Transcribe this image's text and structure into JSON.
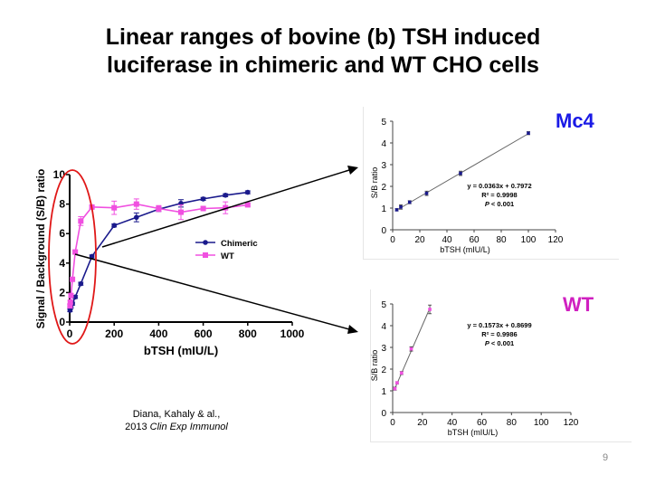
{
  "slide": {
    "title_line1": "Linear ranges of bovine (b) TSH induced",
    "title_line2": "luciferase in chimeric and WT CHO cells",
    "citation_authors": "Diana, Kahaly & al.,",
    "citation_year": "2013",
    "citation_journal": "Clin Exp Immunol",
    "page_number": "9"
  },
  "colors": {
    "chimeric": "#1a1a8c",
    "wt": "#f050e0",
    "mc4_label": "#1a1ae6",
    "wt_label": "#d020c0",
    "ellipse": "#e01818"
  },
  "chart_data": [
    {
      "type": "line",
      "title": "",
      "xlabel": "bTSH (mIU/L)",
      "ylabel": "Signal / Background (S/B) ratio",
      "xlim": [
        0,
        1000
      ],
      "ylim": [
        0,
        10
      ],
      "xticks": [
        "0",
        "200",
        "400",
        "600",
        "800",
        "1000"
      ],
      "yticks": [
        "0",
        "2",
        "4",
        "6",
        "8",
        "10"
      ],
      "legend_position": "center-right",
      "series": [
        {
          "name": "Chimeric",
          "marker": "circle",
          "x": [
            1.5,
            3,
            6,
            12.5,
            25,
            50,
            100,
            200,
            300,
            400,
            500,
            600,
            700,
            800
          ],
          "y": [
            0.8,
            0.95,
            1.05,
            1.25,
            1.7,
            2.6,
            4.45,
            6.55,
            7.1,
            7.65,
            8.05,
            8.35,
            8.6,
            8.8
          ],
          "err": [
            0.1,
            0.1,
            0.1,
            0.1,
            0.1,
            0.1,
            0.1,
            0.1,
            0.3,
            0.15,
            0.25,
            0.1,
            0.1,
            0.1
          ]
        },
        {
          "name": "WT",
          "marker": "square",
          "x": [
            1.5,
            3,
            6,
            12.5,
            25,
            50,
            100,
            200,
            300,
            400,
            500,
            600,
            700,
            800
          ],
          "y": [
            1.1,
            1.35,
            1.8,
            2.9,
            4.75,
            6.85,
            7.8,
            7.75,
            8.0,
            7.7,
            7.45,
            7.7,
            7.75,
            7.95
          ],
          "err": [
            0.1,
            0.1,
            0.1,
            0.1,
            0.1,
            0.3,
            0.1,
            0.45,
            0.35,
            0.2,
            0.5,
            0.1,
            0.4,
            0.1
          ]
        }
      ]
    },
    {
      "type": "scatter",
      "label": "Mc4",
      "xlabel": "bTSH (mIU/L)",
      "ylabel": "S/B ratio",
      "xlim": [
        0,
        120
      ],
      "ylim": [
        0,
        5
      ],
      "xticks": [
        "0",
        "20",
        "40",
        "60",
        "80",
        "100",
        "120"
      ],
      "yticks": [
        "0",
        "1",
        "2",
        "3",
        "4",
        "5"
      ],
      "x": [
        3,
        6,
        12.5,
        25,
        50,
        100
      ],
      "y": [
        0.92,
        1.05,
        1.27,
        1.68,
        2.6,
        4.45
      ],
      "err": [
        0.05,
        0.1,
        0.07,
        0.1,
        0.1,
        0.07
      ],
      "fit": {
        "slope": 0.0363,
        "intercept": 0.7972
      },
      "equation": "y = 0.0363x + 0.7972",
      "r2_label": "R² = 0.9998",
      "p_symbol": "P",
      "p_rest": " < 0.001"
    },
    {
      "type": "scatter",
      "label": "WT",
      "xlabel": "bTSH (mIU/L)",
      "ylabel": "S/B ratio",
      "xlim": [
        0,
        120
      ],
      "ylim": [
        0,
        5
      ],
      "xticks": [
        "0",
        "20",
        "40",
        "60",
        "80",
        "100",
        "120"
      ],
      "yticks": [
        "0",
        "1",
        "2",
        "3",
        "4",
        "5"
      ],
      "x": [
        1.5,
        3,
        6,
        12.5,
        25
      ],
      "y": [
        1.1,
        1.37,
        1.82,
        2.93,
        4.75
      ],
      "err": [
        0.07,
        0.05,
        0.07,
        0.1,
        0.2
      ],
      "fit": {
        "slope": 0.1573,
        "intercept": 0.8699
      },
      "equation": "y = 0.1573x + 0.8699",
      "r2_label": "R² = 0.9986",
      "p_symbol": "P",
      "p_rest": " < 0.001"
    }
  ]
}
